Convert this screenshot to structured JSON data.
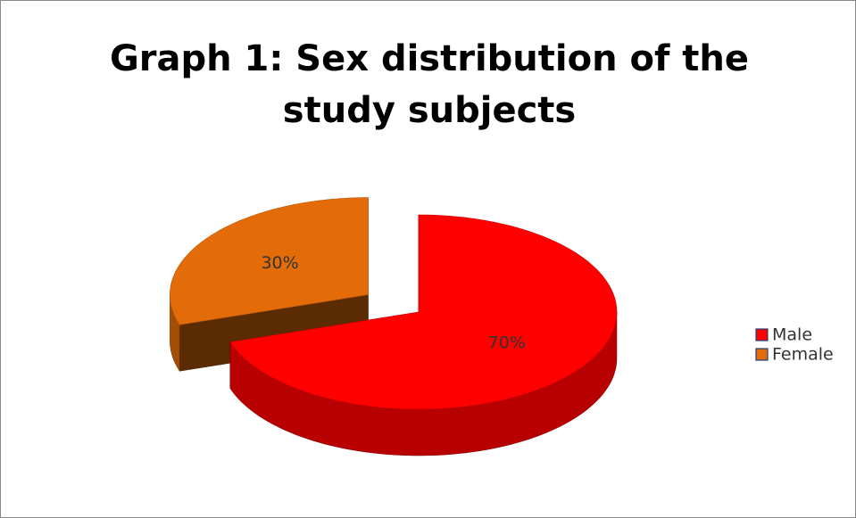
{
  "chart_data": {
    "type": "pie",
    "title": "Graph 1: Sex distribution of the study subjects",
    "categories": [
      "Male",
      "Female"
    ],
    "values": [
      70,
      30
    ],
    "value_labels": [
      "70%",
      "30%"
    ],
    "colors": [
      "#ff0000",
      "#e36c09"
    ],
    "three_d": true,
    "exploded": [
      "Female"
    ],
    "legend": "right"
  }
}
